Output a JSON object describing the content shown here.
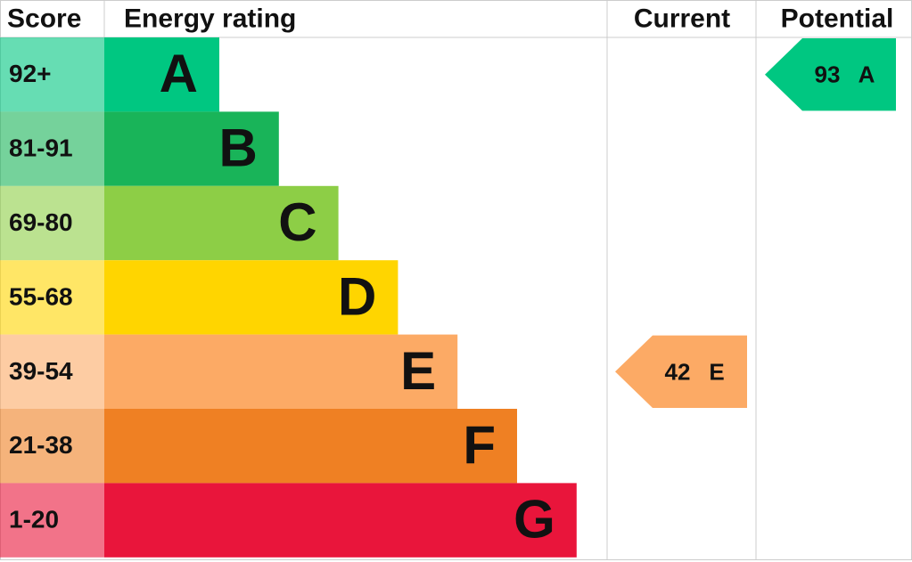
{
  "header": {
    "score": "Score",
    "rating": "Energy rating",
    "current": "Current",
    "potential": "Potential"
  },
  "rows": [
    {
      "score": "92+",
      "letter": "A",
      "color": "#00c781"
    },
    {
      "score": "81-91",
      "letter": "B",
      "color": "#19b459"
    },
    {
      "score": "69-80",
      "letter": "C",
      "color": "#8dce46"
    },
    {
      "score": "55-68",
      "letter": "D",
      "color": "#ffd500"
    },
    {
      "score": "39-54",
      "letter": "E",
      "color": "#fcaa65"
    },
    {
      "score": "21-38",
      "letter": "F",
      "color": "#ef8023"
    },
    {
      "score": "1-20",
      "letter": "G",
      "color": "#e9153b"
    }
  ],
  "current": {
    "value": 42,
    "letter": "E"
  },
  "potential": {
    "value": 93,
    "letter": "A"
  }
}
